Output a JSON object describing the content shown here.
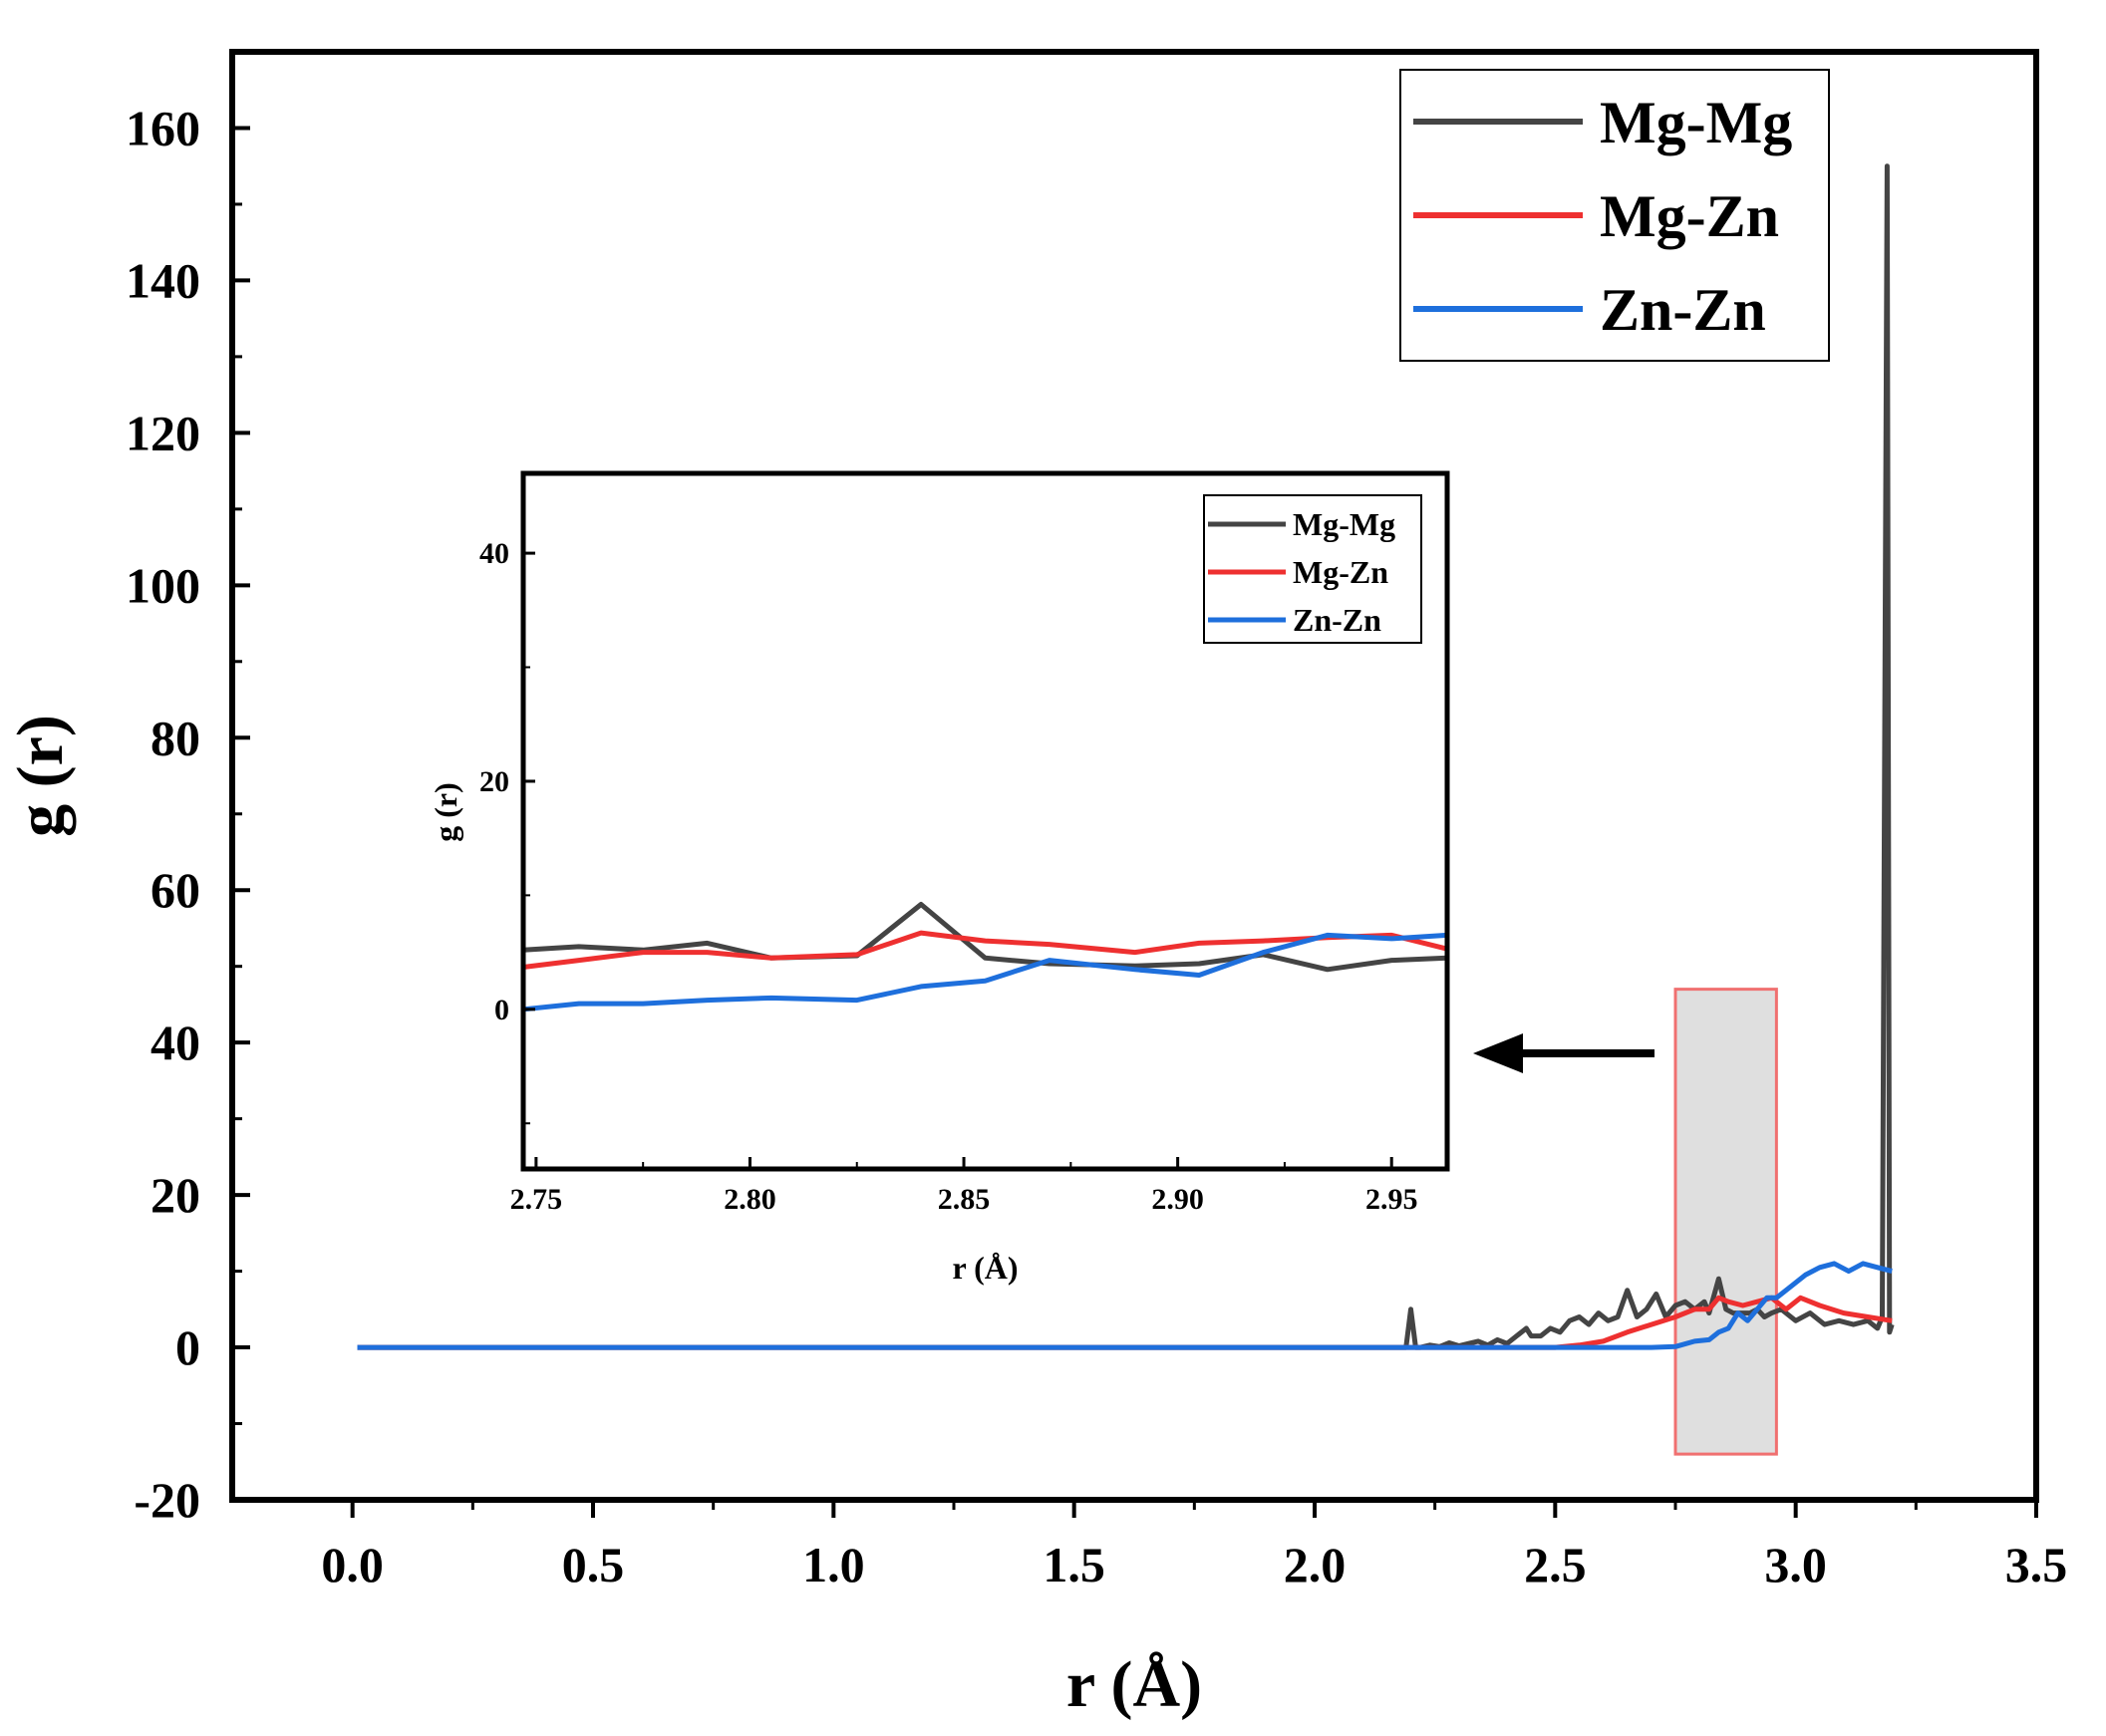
{
  "chart_data": [
    {
      "type": "line",
      "xlabel": "r (Å)",
      "ylabel": "g (r)",
      "xlim": [
        -0.25,
        3.5
      ],
      "ylim": [
        -20,
        170
      ],
      "x_ticks": [
        "0.0",
        "0.5",
        "1.0",
        "1.5",
        "2.0",
        "2.5",
        "3.0",
        "3.5"
      ],
      "y_ticks": [
        "-20",
        "0",
        "20",
        "40",
        "60",
        "80",
        "100",
        "120",
        "140",
        "160"
      ],
      "legend": {
        "placement": "top-right",
        "entries": [
          "Mg-Mg",
          "Mg-Zn",
          "Zn-Zn"
        ]
      },
      "highlight_region": {
        "x": [
          2.75,
          2.96
        ],
        "y": [
          -14,
          47
        ],
        "label": "zoomed region shown in inset"
      },
      "series": [
        {
          "name": "Mg-Mg",
          "color": "#444444",
          "x": [
            0.01,
            2.19,
            2.2,
            2.21,
            2.22,
            2.24,
            2.26,
            2.28,
            2.3,
            2.32,
            2.34,
            2.36,
            2.38,
            2.4,
            2.42,
            2.44,
            2.45,
            2.47,
            2.49,
            2.51,
            2.53,
            2.55,
            2.57,
            2.59,
            2.61,
            2.63,
            2.65,
            2.67,
            2.69,
            2.71,
            2.73,
            2.75,
            2.77,
            2.79,
            2.81,
            2.82,
            2.84,
            2.855,
            2.87,
            2.89,
            2.905,
            2.92,
            2.935,
            2.95,
            2.97,
            3.0,
            3.03,
            3.06,
            3.09,
            3.12,
            3.15,
            3.17,
            3.18,
            3.19,
            3.195,
            3.2
          ],
          "y": [
            0,
            0,
            5,
            0,
            0,
            0.3,
            0.1,
            0.6,
            0.2,
            0.5,
            0.8,
            0.3,
            1.0,
            0.5,
            1.5,
            2.5,
            1.5,
            1.5,
            2.5,
            2.0,
            3.5,
            4.0,
            3.0,
            4.5,
            3.5,
            4.0,
            7.5,
            4.0,
            5.0,
            7.0,
            4.0,
            5.5,
            6.0,
            5.0,
            6.0,
            4.5,
            9.0,
            5.0,
            4.5,
            4.5,
            4.5,
            5.0,
            4.0,
            4.5,
            5.0,
            3.5,
            4.5,
            3.0,
            3.5,
            3.0,
            3.5,
            2.5,
            4.0,
            155,
            2.0,
            3.0
          ]
        },
        {
          "name": "Mg-Zn",
          "color": "#ee3030",
          "x": [
            0.01,
            2.5,
            2.55,
            2.6,
            2.65,
            2.7,
            2.75,
            2.79,
            2.82,
            2.84,
            2.86,
            2.89,
            2.92,
            2.95,
            2.98,
            3.01,
            3.05,
            3.1,
            3.15,
            3.2
          ],
          "y": [
            0,
            0,
            0.3,
            0.8,
            2.0,
            3.0,
            4.0,
            5.0,
            5.0,
            6.5,
            6.0,
            5.5,
            6.0,
            6.5,
            5.0,
            6.5,
            5.5,
            4.5,
            4.0,
            3.5
          ]
        },
        {
          "name": "Zn-Zn",
          "color": "#1e6fdc",
          "x": [
            0.01,
            2.7,
            2.75,
            2.79,
            2.82,
            2.84,
            2.86,
            2.88,
            2.9,
            2.92,
            2.94,
            2.96,
            2.99,
            3.02,
            3.05,
            3.08,
            3.11,
            3.14,
            3.17,
            3.2
          ],
          "y": [
            0,
            0,
            0.1,
            0.8,
            1.0,
            2.0,
            2.5,
            4.5,
            3.5,
            5.0,
            6.5,
            6.5,
            8.0,
            9.5,
            10.5,
            11.0,
            10.0,
            11.0,
            10.5,
            10.0
          ]
        }
      ]
    },
    {
      "type": "line",
      "placement": "inset",
      "xlabel": "r (Å)",
      "ylabel": "g (r)",
      "xlim": [
        2.747,
        2.963
      ],
      "ylim": [
        -14,
        47
      ],
      "x_ticks": [
        "2.75",
        "2.80",
        "2.85",
        "2.90",
        "2.95"
      ],
      "y_ticks": [
        "0",
        "20",
        "40"
      ],
      "legend": {
        "placement": "top-right",
        "entries": [
          "Mg-Mg",
          "Mg-Zn",
          "Zn-Zn"
        ]
      },
      "series": [
        {
          "name": "Mg-Mg",
          "color": "#444444",
          "x": [
            2.747,
            2.76,
            2.775,
            2.79,
            2.805,
            2.825,
            2.84,
            2.855,
            2.87,
            2.89,
            2.905,
            2.92,
            2.935,
            2.95,
            2.963
          ],
          "y": [
            5.2,
            5.5,
            5.2,
            5.8,
            4.5,
            4.7,
            9.2,
            4.5,
            4.0,
            3.8,
            4.0,
            4.8,
            3.5,
            4.3,
            4.5
          ]
        },
        {
          "name": "Mg-Zn",
          "color": "#ee3030",
          "x": [
            2.747,
            2.76,
            2.775,
            2.79,
            2.805,
            2.825,
            2.84,
            2.855,
            2.87,
            2.89,
            2.905,
            2.92,
            2.935,
            2.95,
            2.963
          ],
          "y": [
            3.7,
            4.3,
            5.0,
            5.0,
            4.5,
            4.8,
            6.7,
            6.0,
            5.7,
            5.0,
            5.8,
            6.0,
            6.3,
            6.5,
            5.3
          ]
        },
        {
          "name": "Zn-Zn",
          "color": "#1e6fdc",
          "x": [
            2.747,
            2.76,
            2.775,
            2.79,
            2.805,
            2.825,
            2.84,
            2.855,
            2.87,
            2.89,
            2.905,
            2.92,
            2.935,
            2.95,
            2.963
          ],
          "y": [
            0.0,
            0.5,
            0.5,
            0.8,
            1.0,
            0.8,
            2.0,
            2.5,
            4.3,
            3.5,
            3.0,
            5.0,
            6.5,
            6.2,
            6.5
          ]
        }
      ]
    }
  ]
}
